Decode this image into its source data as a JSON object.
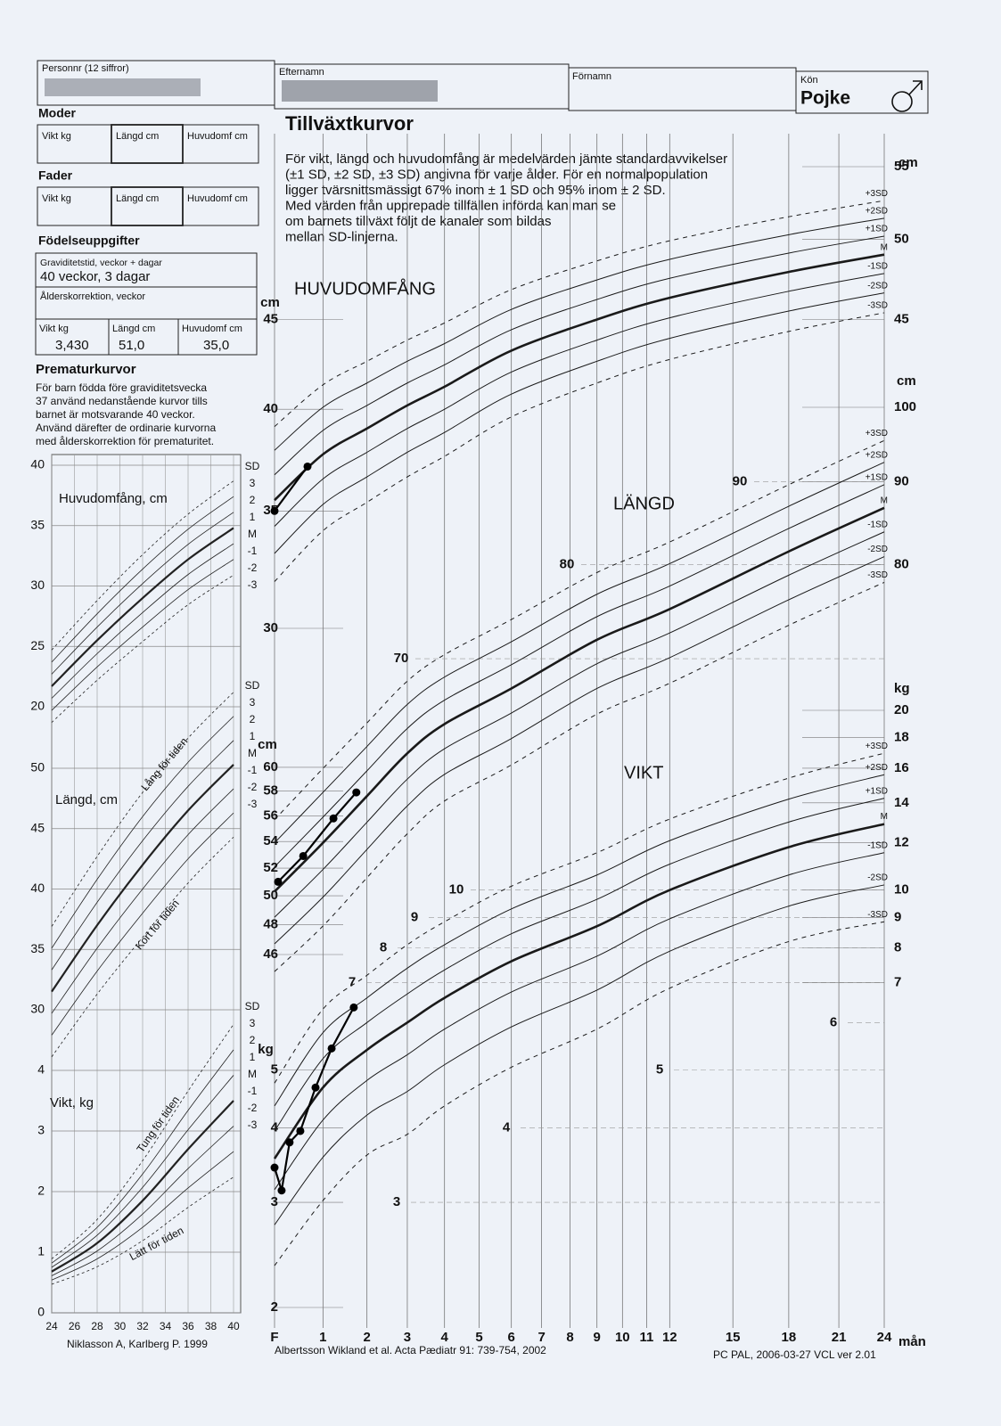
{
  "header": {
    "personnr_label": "Personnr (12 siffror)",
    "efternamn_label": "Efternamn",
    "fornamn_label": "Förnamn",
    "kon_label": "Kön",
    "kon": "Pojke"
  },
  "moder": {
    "title": "Moder",
    "fields": [
      "Vikt kg",
      "Längd cm",
      "Huvudomf cm"
    ]
  },
  "fader": {
    "title": "Fader",
    "fields": [
      "Vikt kg",
      "Längd cm",
      "Huvudomf cm"
    ]
  },
  "birth": {
    "title": "Födelseuppgifter",
    "gestation_label": "Graviditetstid, veckor + dagar",
    "gestation": "40 veckor, 3 dagar",
    "correction_label": "Ålderskorrektion, veckor",
    "fields": [
      {
        "label": "Vikt kg",
        "value": "3,430"
      },
      {
        "label": "Längd cm",
        "value": "51,0"
      },
      {
        "label": "Huvudomf cm",
        "value": "35,0"
      }
    ]
  },
  "premature": {
    "title": "Prematurkurvor",
    "text": [
      "För barn födda före graviditetsvecka",
      "37 använd nedanstående kurvor tills",
      "barnet är motsvarande 40 veckor.",
      "Använd därefter de ordinarie kurvorna",
      "med ålderskorrektion för prematuritet."
    ],
    "xticks": [
      24,
      26,
      28,
      30,
      32,
      34,
      36,
      38,
      40
    ],
    "sd_labels": [
      "SD",
      "3",
      "2",
      "1",
      "M",
      "-1",
      "-2",
      "-3"
    ],
    "credit": "Niklasson A, Karlberg P. 1999",
    "panels": [
      {
        "label": "Huvudomfång, cm",
        "ylim": [
          20,
          40
        ],
        "yticks": [
          20,
          25,
          30,
          35,
          40
        ],
        "x": [
          24,
          28,
          32,
          36,
          40
        ],
        "median": [
          21.7,
          25.5,
          29.0,
          32.2,
          34.8
        ],
        "sd": [
          1.0,
          1.1,
          1.2,
          1.25,
          1.3
        ],
        "notes": []
      },
      {
        "label": "Längd, cm",
        "ylim": [
          30,
          50
        ],
        "yticks": [
          30,
          35,
          40,
          45,
          50
        ],
        "x": [
          24,
          28,
          32,
          36,
          40
        ],
        "median": [
          31.5,
          37,
          42,
          46.5,
          50.3
        ],
        "sd": [
          1.8,
          1.9,
          2.0,
          2.0,
          2.0
        ],
        "notes": [
          "Lång för tiden",
          "Kort för tiden"
        ]
      },
      {
        "label": "Vikt, kg",
        "ylim": [
          0,
          4
        ],
        "yticks": [
          0,
          1,
          2,
          3,
          4
        ],
        "x": [
          24,
          28,
          32,
          36,
          40
        ],
        "median": [
          0.68,
          1.15,
          1.85,
          2.7,
          3.5
        ],
        "sd": [
          0.07,
          0.13,
          0.22,
          0.32,
          0.42
        ],
        "notes": [
          "Tung för tiden",
          "Lätt för tiden"
        ]
      }
    ]
  },
  "main": {
    "title": "Tillväxtkurvor",
    "text": [
      "För vikt, längd och huvudomfång är medelvärden jämte standardavvikelser",
      "(±1 SD, ±2 SD, ±3 SD) angivna för varje ålder. För en normalpopulation",
      "ligger tvärsnittsmässigt 67% inom ± 1 SD och 95% inom ± 2 SD.",
      "Med värden från upprepade tillfällen införda kan man se",
      "om barnets tillväxt följt de kanaler som bildas",
      "mellan SD-linjerna."
    ],
    "xticks": [
      {
        "value": 0,
        "label": "F"
      },
      1,
      2,
      3,
      4,
      5,
      6,
      7,
      8,
      9,
      10,
      11,
      12,
      15,
      18,
      21,
      24
    ],
    "x_unit": "mån",
    "sd_labels": [
      "+3SD",
      "+2SD",
      "+1SD",
      "M",
      "-1SD",
      "-2SD",
      "-3SD"
    ],
    "credit_left": "Albertsson Wikland et al.  Acta Pædiatr 91: 739-754, 2002",
    "credit_right": "PC PAL, 2006-03-27 VCL ver 2.01",
    "panels": [
      {
        "label": "HUVUDOMFÅNG",
        "unit_left": "cm",
        "unit_right": "cm",
        "ylim": [
          30,
          55
        ],
        "yticks_left": [
          30,
          35,
          40,
          45
        ],
        "yticks_inner": [],
        "yticks_right": [
          45,
          50,
          55
        ],
        "x": [
          0,
          1,
          2,
          3,
          4,
          6,
          9,
          12,
          18,
          24
        ],
        "median": [
          35.5,
          37.7,
          39.0,
          40.2,
          41.2,
          43.2,
          45.0,
          46.3,
          47.9,
          49.0
        ],
        "sd": [
          1.2,
          1.2,
          1.2,
          1.2,
          1.2,
          1.2,
          1.2,
          1.2,
          1.2,
          1.2
        ],
        "patient": {
          "x": [
            0,
            0.67
          ],
          "values": [
            35.0,
            37.1
          ]
        }
      },
      {
        "label": "LÄNGD",
        "unit_left": "cm",
        "unit_right": "cm",
        "ylim": [
          46,
          100
        ],
        "yticks_left": [
          46,
          48,
          50,
          52,
          54,
          56,
          58,
          60
        ],
        "yticks_inner": [
          70,
          80,
          90
        ],
        "yticks_right": [
          80,
          90,
          100
        ],
        "x": [
          0,
          1,
          2,
          3,
          4,
          6,
          9,
          12,
          18,
          24
        ],
        "median": [
          50.3,
          53.9,
          57.6,
          61.2,
          63.8,
          67.1,
          71.9,
          75.1,
          81.5,
          86.7
        ],
        "sd": [
          1.8,
          2.0,
          2.1,
          2.2,
          2.2,
          2.3,
          2.4,
          2.5,
          2.7,
          2.9
        ],
        "patient": {
          "x": [
            0.07,
            0.58,
            1.23,
            1.75
          ],
          "values": [
            51.0,
            52.9,
            55.8,
            57.9
          ]
        }
      },
      {
        "label": "VIKT",
        "unit_left": "kg",
        "unit_right": "kg",
        "ylim": [
          2,
          20
        ],
        "yticks_left": [
          2,
          3,
          4,
          5
        ],
        "yticks_inner": [
          3,
          4,
          5,
          6,
          7,
          8,
          9,
          10
        ],
        "yticks_right": [
          7,
          8,
          9,
          10,
          12,
          14,
          16,
          18,
          20
        ],
        "x": [
          0,
          1,
          2,
          3,
          4,
          6,
          9,
          12,
          18,
          24
        ],
        "median": [
          3.55,
          4.67,
          5.4,
          6.0,
          6.6,
          7.6,
          8.7,
          10.0,
          11.8,
          12.9
        ],
        "sd": [
          0.4,
          0.55,
          0.6,
          0.7,
          0.75,
          0.85,
          0.95,
          1.05,
          1.2,
          1.35
        ],
        "patient": {
          "x": [
            0,
            0.14,
            0.3,
            0.52,
            0.84,
            1.19,
            1.69
          ],
          "values": [
            3.43,
            3.14,
            3.78,
            3.95,
            4.67,
            5.43,
            6.36
          ]
        }
      }
    ]
  }
}
